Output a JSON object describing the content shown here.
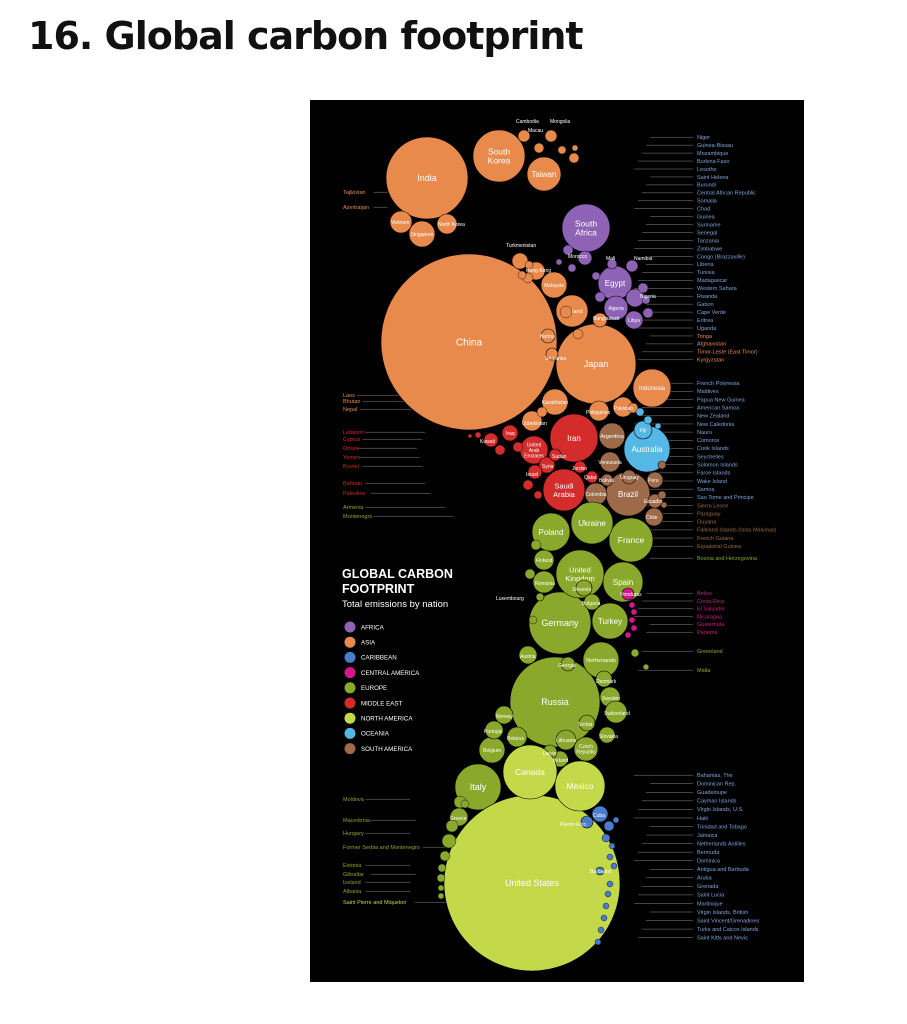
{
  "page": {
    "title": "16. Global carbon footprint"
  },
  "infographic": {
    "title_line1": "GLOBAL CARBON",
    "title_line2": "FOOTPRINT",
    "subtitle": "Total emissions by nation"
  },
  "colors": {
    "AFRICA": "#8e63b5",
    "ASIA": "#e98a4d",
    "CARIBBEAN": "#4a7ccc",
    "CENTRAL AMERICA": "#d6168c",
    "EUROPE": "#8aa82b",
    "MIDDLE EAST": "#d42b2b",
    "NORTH AMERICA": "#c3d94a",
    "OCEANIA": "#55b7e6",
    "SOUTH AMERICA": "#9d6a4a",
    "right_label_blue": "#7fa4df",
    "text_light": "#dddddd"
  },
  "chart_data": {
    "type": "bubble",
    "legend": [
      {
        "region": "AFRICA"
      },
      {
        "region": "ASIA"
      },
      {
        "region": "CARIBBEAN"
      },
      {
        "region": "CENTRAL AMERICA"
      },
      {
        "region": "EUROPE"
      },
      {
        "region": "MIDDLE EAST"
      },
      {
        "region": "NORTH AMERICA"
      },
      {
        "region": "OCEANIA"
      },
      {
        "region": "SOUTH AMERICA"
      }
    ],
    "bubbles": [
      {
        "name": "China",
        "region": "ASIA"
      },
      {
        "name": "India",
        "region": "ASIA"
      },
      {
        "name": "South Korea",
        "region": "ASIA"
      },
      {
        "name": "Taiwan",
        "region": "ASIA"
      },
      {
        "name": "Japan",
        "region": "ASIA"
      },
      {
        "name": "Indonesia",
        "region": "ASIA"
      },
      {
        "name": "Thailand",
        "region": "ASIA"
      },
      {
        "name": "Malaysia",
        "region": "ASIA"
      },
      {
        "name": "Kazakhstan",
        "region": "ASIA"
      },
      {
        "name": "Pakistan",
        "region": "ASIA"
      },
      {
        "name": "Philippines",
        "region": "ASIA"
      },
      {
        "name": "Singapore",
        "region": "ASIA"
      },
      {
        "name": "Vietnam",
        "region": "ASIA"
      },
      {
        "name": "North Korea",
        "region": "ASIA"
      },
      {
        "name": "Bangladesh",
        "region": "ASIA"
      },
      {
        "name": "Uzbekistan",
        "region": "ASIA"
      },
      {
        "name": "Burma",
        "region": "ASIA"
      },
      {
        "name": "Hong Kong",
        "region": "ASIA"
      },
      {
        "name": "Cambodia",
        "region": "ASIA"
      },
      {
        "name": "Mongolia",
        "region": "ASIA"
      },
      {
        "name": "Macau",
        "region": "ASIA"
      },
      {
        "name": "Turkmenistan",
        "region": "ASIA"
      },
      {
        "name": "Sri Lanka",
        "region": "ASIA"
      },
      {
        "name": "Tajikistan",
        "region": "ASIA"
      },
      {
        "name": "Azerbaijan",
        "region": "ASIA"
      },
      {
        "name": "Laos",
        "region": "ASIA"
      },
      {
        "name": "Bhutan",
        "region": "ASIA"
      },
      {
        "name": "Nepal",
        "region": "ASIA"
      },
      {
        "name": "South Africa",
        "region": "AFRICA"
      },
      {
        "name": "Egypt",
        "region": "AFRICA"
      },
      {
        "name": "Algeria",
        "region": "AFRICA"
      },
      {
        "name": "Nigeria",
        "region": "AFRICA"
      },
      {
        "name": "Libya",
        "region": "AFRICA"
      },
      {
        "name": "Morocco",
        "region": "AFRICA"
      },
      {
        "name": "Namibia",
        "region": "AFRICA"
      },
      {
        "name": "Mali",
        "region": "AFRICA"
      },
      {
        "name": "Iran",
        "region": "MIDDLE EAST"
      },
      {
        "name": "Saudi Arabia",
        "region": "MIDDLE EAST"
      },
      {
        "name": "United Arab Emirates",
        "region": "MIDDLE EAST"
      },
      {
        "name": "Iraq",
        "region": "MIDDLE EAST"
      },
      {
        "name": "Kuwait",
        "region": "MIDDLE EAST"
      },
      {
        "name": "Syria",
        "region": "MIDDLE EAST"
      },
      {
        "name": "Sudan",
        "region": "MIDDLE EAST"
      },
      {
        "name": "Israel",
        "region": "MIDDLE EAST"
      },
      {
        "name": "Jordan",
        "region": "MIDDLE EAST"
      },
      {
        "name": "Qatar",
        "region": "MIDDLE EAST"
      },
      {
        "name": "Australia",
        "region": "OCEANIA"
      },
      {
        "name": "Fiji",
        "region": "OCEANIA"
      },
      {
        "name": "Brazil",
        "region": "SOUTH AMERICA"
      },
      {
        "name": "Argentina",
        "region": "SOUTH AMERICA"
      },
      {
        "name": "Venezuela",
        "region": "SOUTH AMERICA"
      },
      {
        "name": "Colombia",
        "region": "SOUTH AMERICA"
      },
      {
        "name": "Chile",
        "region": "SOUTH AMERICA"
      },
      {
        "name": "Peru",
        "region": "SOUTH AMERICA"
      },
      {
        "name": "Ecuador",
        "region": "SOUTH AMERICA"
      },
      {
        "name": "Uruguay",
        "region": "SOUTH AMERICA"
      },
      {
        "name": "Bolivia",
        "region": "SOUTH AMERICA"
      },
      {
        "name": "Guyana",
        "region": "SOUTH AMERICA"
      },
      {
        "name": "Russia",
        "region": "EUROPE"
      },
      {
        "name": "Germany",
        "region": "EUROPE"
      },
      {
        "name": "France",
        "region": "EUROPE"
      },
      {
        "name": "United Kingdom",
        "region": "EUROPE"
      },
      {
        "name": "Italy",
        "region": "EUROPE"
      },
      {
        "name": "Spain",
        "region": "EUROPE"
      },
      {
        "name": "Ukraine",
        "region": "EUROPE"
      },
      {
        "name": "Poland",
        "region": "EUROPE"
      },
      {
        "name": "Turkey",
        "region": "EUROPE"
      },
      {
        "name": "Netherlands",
        "region": "EUROPE"
      },
      {
        "name": "Belgium",
        "region": "EUROPE"
      },
      {
        "name": "Romania",
        "region": "EUROPE"
      },
      {
        "name": "Finland",
        "region": "EUROPE"
      },
      {
        "name": "Austria",
        "region": "EUROPE"
      },
      {
        "name": "Sweden",
        "region": "EUROPE"
      },
      {
        "name": "Switzerland",
        "region": "EUROPE"
      },
      {
        "name": "Norway",
        "region": "EUROPE"
      },
      {
        "name": "Portugal",
        "region": "EUROPE"
      },
      {
        "name": "Belarus",
        "region": "EUROPE"
      },
      {
        "name": "Lithuania",
        "region": "EUROPE"
      },
      {
        "name": "Czech Republic",
        "region": "EUROPE"
      },
      {
        "name": "Slovenia",
        "region": "EUROPE"
      },
      {
        "name": "Bulgaria",
        "region": "EUROPE"
      },
      {
        "name": "Denmark",
        "region": "EUROPE"
      },
      {
        "name": "Georgia",
        "region": "EUROPE"
      },
      {
        "name": "Serbia",
        "region": "EUROPE"
      },
      {
        "name": "Slovakia",
        "region": "EUROPE"
      },
      {
        "name": "Ireland",
        "region": "EUROPE"
      },
      {
        "name": "Latvia",
        "region": "EUROPE"
      },
      {
        "name": "Greece",
        "region": "EUROPE"
      },
      {
        "name": "Greenland",
        "region": "EUROPE"
      },
      {
        "name": "Malta",
        "region": "EUROPE"
      },
      {
        "name": "Luxembourg",
        "region": "EUROPE"
      },
      {
        "name": "Honduras",
        "region": "CENTRAL AMERICA"
      },
      {
        "name": "United States",
        "region": "NORTH AMERICA"
      },
      {
        "name": "Canada",
        "region": "NORTH AMERICA"
      },
      {
        "name": "Mexico",
        "region": "NORTH AMERICA"
      },
      {
        "name": "Cuba",
        "region": "CARIBBEAN"
      },
      {
        "name": "Puerto Rico",
        "region": "CARIBBEAN"
      },
      {
        "name": "Barbados",
        "region": "CARIBBEAN"
      }
    ],
    "side_labels_left": [
      {
        "text": "Tajikistan",
        "region": "ASIA"
      },
      {
        "text": "Azerbaijan",
        "region": "ASIA"
      },
      {
        "text": "Laos",
        "region": "ASIA"
      },
      {
        "text": "Bhutan",
        "region": "ASIA"
      },
      {
        "text": "Nepal",
        "region": "ASIA"
      },
      {
        "text": "Lebanon",
        "region": "MIDDLE EAST"
      },
      {
        "text": "Cyprus",
        "region": "MIDDLE EAST"
      },
      {
        "text": "Oman",
        "region": "MIDDLE EAST"
      },
      {
        "text": "Yemen",
        "region": "MIDDLE EAST"
      },
      {
        "text": "Brunei",
        "region": "MIDDLE EAST"
      },
      {
        "text": "Bahrain",
        "region": "MIDDLE EAST"
      },
      {
        "text": "Palestine",
        "region": "MIDDLE EAST"
      },
      {
        "text": "Armenia",
        "region": "EUROPE"
      },
      {
        "text": "Montenegro",
        "region": "EUROPE"
      },
      {
        "text": "Moldova",
        "region": "EUROPE"
      },
      {
        "text": "Macedonia",
        "region": "EUROPE"
      },
      {
        "text": "Hungary",
        "region": "EUROPE"
      },
      {
        "text": "Former Serbia and Montenegro",
        "region": "EUROPE"
      },
      {
        "text": "Estonia",
        "region": "EUROPE"
      },
      {
        "text": "Gibraltar",
        "region": "EUROPE"
      },
      {
        "text": "Iceland",
        "region": "EUROPE"
      },
      {
        "text": "Albania",
        "region": "EUROPE"
      },
      {
        "text": "Saint Pierre and Miquelon",
        "region": "NORTH AMERICA"
      }
    ],
    "side_labels_right": [
      {
        "text": "Niger",
        "region": "AFRICA"
      },
      {
        "text": "Guinea-Bissau",
        "region": "AFRICA"
      },
      {
        "text": "Mozambique",
        "region": "AFRICA"
      },
      {
        "text": "Burkina Faso",
        "region": "AFRICA"
      },
      {
        "text": "Lesotho",
        "region": "AFRICA"
      },
      {
        "text": "Saint Helena",
        "region": "AFRICA"
      },
      {
        "text": "Burundi",
        "region": "AFRICA"
      },
      {
        "text": "Central African Republic",
        "region": "AFRICA"
      },
      {
        "text": "Somalia",
        "region": "AFRICA"
      },
      {
        "text": "Chad",
        "region": "AFRICA"
      },
      {
        "text": "Guinea",
        "region": "AFRICA"
      },
      {
        "text": "Suriname",
        "region": "AFRICA"
      },
      {
        "text": "Senegal",
        "region": "AFRICA"
      },
      {
        "text": "Tanzania",
        "region": "AFRICA"
      },
      {
        "text": "Zimbabwe",
        "region": "AFRICA"
      },
      {
        "text": "Congo (Brazzaville)",
        "region": "AFRICA"
      },
      {
        "text": "Liberia",
        "region": "AFRICA"
      },
      {
        "text": "Tunisia",
        "region": "AFRICA"
      },
      {
        "text": "Madagascar",
        "region": "AFRICA"
      },
      {
        "text": "Western Sahara",
        "region": "AFRICA"
      },
      {
        "text": "Rwanda",
        "region": "AFRICA"
      },
      {
        "text": "Gabon",
        "region": "AFRICA"
      },
      {
        "text": "Cape Verde",
        "region": "AFRICA"
      },
      {
        "text": "Eritrea",
        "region": "AFRICA"
      },
      {
        "text": "Uganda",
        "region": "AFRICA"
      },
      {
        "text": "Tonga",
        "region": "ASIA"
      },
      {
        "text": "Afghanistan",
        "region": "ASIA"
      },
      {
        "text": "Timor-Leste (East Timor)",
        "region": "ASIA"
      },
      {
        "text": "Kyrgyzstan",
        "region": "ASIA"
      },
      {
        "text": "French Polynesia",
        "region": "OCEANIA"
      },
      {
        "text": "Maldives",
        "region": "OCEANIA"
      },
      {
        "text": "Papua New Guinea",
        "region": "OCEANIA"
      },
      {
        "text": "American Samoa",
        "region": "OCEANIA"
      },
      {
        "text": "New Zealand",
        "region": "OCEANIA"
      },
      {
        "text": "New Caledonia",
        "region": "OCEANIA"
      },
      {
        "text": "Nauru",
        "region": "OCEANIA"
      },
      {
        "text": "Comoros",
        "region": "OCEANIA"
      },
      {
        "text": "Cook Islands",
        "region": "OCEANIA"
      },
      {
        "text": "Seychelles",
        "region": "OCEANIA"
      },
      {
        "text": "Solomon Islands",
        "region": "OCEANIA"
      },
      {
        "text": "Faroe Islands",
        "region": "OCEANIA"
      },
      {
        "text": "Wake Island",
        "region": "OCEANIA"
      },
      {
        "text": "Samoa",
        "region": "OCEANIA"
      },
      {
        "text": "Sao Tome and Principe",
        "region": "OCEANIA"
      },
      {
        "text": "Sierra Leone",
        "region": "SOUTH AMERICA"
      },
      {
        "text": "Paraguay",
        "region": "SOUTH AMERICA"
      },
      {
        "text": "Guyana",
        "region": "SOUTH AMERICA"
      },
      {
        "text": "Falkland Islands (Islas Malvinas)",
        "region": "SOUTH AMERICA"
      },
      {
        "text": "French Guiana",
        "region": "SOUTH AMERICA"
      },
      {
        "text": "Equatorial Guinea",
        "region": "SOUTH AMERICA"
      },
      {
        "text": "Bosnia and Herzegovina",
        "region": "EUROPE"
      },
      {
        "text": "Belize",
        "region": "CENTRAL AMERICA"
      },
      {
        "text": "Costa Rica",
        "region": "CENTRAL AMERICA"
      },
      {
        "text": "El Salvador",
        "region": "CENTRAL AMERICA"
      },
      {
        "text": "Nicaragua",
        "region": "CENTRAL AMERICA"
      },
      {
        "text": "Guatemala",
        "region": "CENTRAL AMERICA"
      },
      {
        "text": "Panama",
        "region": "CENTRAL AMERICA"
      },
      {
        "text": "Greenland",
        "region": "EUROPE"
      },
      {
        "text": "Malta",
        "region": "EUROPE"
      },
      {
        "text": "Bahamas, The",
        "region": "CARIBBEAN"
      },
      {
        "text": "Dominican Rep.",
        "region": "CARIBBEAN"
      },
      {
        "text": "Guadeloupe",
        "region": "CARIBBEAN"
      },
      {
        "text": "Cayman Islands",
        "region": "CARIBBEAN"
      },
      {
        "text": "Virgin Islands, U.S.",
        "region": "CARIBBEAN"
      },
      {
        "text": "Haiti",
        "region": "CARIBBEAN"
      },
      {
        "text": "Trinidad and Tobago",
        "region": "CARIBBEAN"
      },
      {
        "text": "Jamaica",
        "region": "CARIBBEAN"
      },
      {
        "text": "Netherlands Antilles",
        "region": "CARIBBEAN"
      },
      {
        "text": "Bermuda",
        "region": "CARIBBEAN"
      },
      {
        "text": "Dominica",
        "region": "CARIBBEAN"
      },
      {
        "text": "Antigua and Barbuda",
        "region": "CARIBBEAN"
      },
      {
        "text": "Aruba",
        "region": "CARIBBEAN"
      },
      {
        "text": "Grenada",
        "region": "CARIBBEAN"
      },
      {
        "text": "Saint Lucia",
        "region": "CARIBBEAN"
      },
      {
        "text": "Martinique",
        "region": "CARIBBEAN"
      },
      {
        "text": "Virgin Islands, British",
        "region": "CARIBBEAN"
      },
      {
        "text": "Saint Vincent/Grenadines",
        "region": "CARIBBEAN"
      },
      {
        "text": "Turks and Caicos Islands",
        "region": "CARIBBEAN"
      },
      {
        "text": "Saint Kitts and Nevis",
        "region": "CARIBBEAN"
      }
    ]
  }
}
